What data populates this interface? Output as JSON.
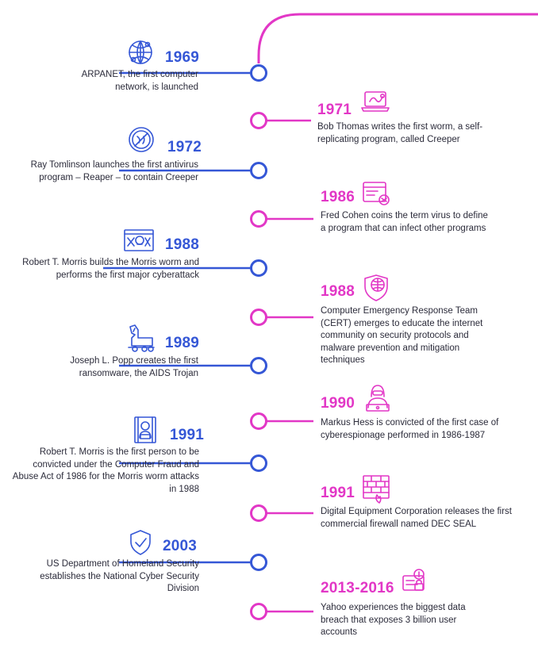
{
  "colors": {
    "blue": "#3557d6",
    "magenta": "#e237c6",
    "text": "#2b2b3a"
  },
  "events": [
    {
      "side": "left",
      "year": "1969",
      "icon": "globe-network-icon",
      "text": "ARPANET, the first computer network, is launched"
    },
    {
      "side": "right",
      "year": "1971",
      "icon": "worm-laptop-icon",
      "text": "Bob Thomas writes the first worm, a self-replicating program, called Creeper"
    },
    {
      "side": "left",
      "year": "1972",
      "icon": "antivirus-shield-icon",
      "text": "Ray Tomlinson launches the first antivirus program – Reaper – to contain Creeper"
    },
    {
      "side": "right",
      "year": "1986",
      "icon": "virus-window-icon",
      "text": "Fred Cohen coins the term virus to define a program that can infect other programs"
    },
    {
      "side": "left",
      "year": "1988",
      "icon": "skull-crossbones-icon",
      "text": "Robert T. Morris builds the Morris worm and performs the first major cyberattack"
    },
    {
      "side": "right",
      "year": "1988",
      "icon": "globe-shield-icon",
      "text": "Computer Emergency Response Team (CERT) emerges to educate the internet community on security protocols and malware prevention and mitigation techniques"
    },
    {
      "side": "left",
      "year": "1989",
      "icon": "trojan-horse-icon",
      "text": "Joseph L. Popp creates the first ransomware, the AIDS Trojan"
    },
    {
      "side": "right",
      "year": "1990",
      "icon": "hacker-icon",
      "text": "Markus Hess is convicted of the first case of cyberespionage performed in 1986-1987"
    },
    {
      "side": "left",
      "year": "1991",
      "icon": "prisoner-icon",
      "text": "Robert T. Morris is the first person to be convicted under the Computer Fraud and Abuse Act of 1986 for the Morris worm attacks in 1988"
    },
    {
      "side": "right",
      "year": "1991",
      "icon": "firewall-icon",
      "text": "Digital Equipment Corporation releases the first commercial firewall named DEC SEAL"
    },
    {
      "side": "left",
      "year": "2003",
      "icon": "check-shield-icon",
      "text": "US Department of Homeland Security establishes the National Cyber Security Division"
    },
    {
      "side": "right",
      "year": "2013-2016",
      "icon": "data-breach-laptop-icon",
      "text": "Yahoo experiences the biggest data breach that exposes 3 billion user accounts"
    }
  ]
}
